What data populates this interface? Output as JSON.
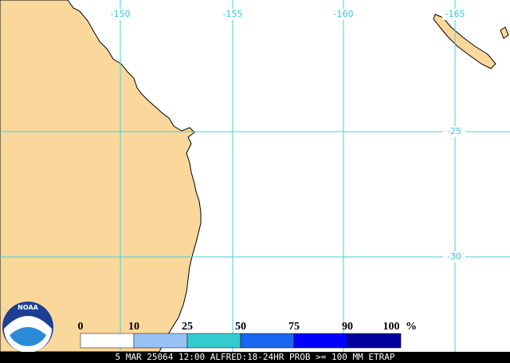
{
  "map": {
    "lon_labels": [
      "-150",
      "-155",
      "-160",
      "-165"
    ],
    "lat_labels": [
      "-25",
      "-30"
    ]
  },
  "legend": {
    "labels": [
      "0",
      "10",
      "25",
      "50",
      "75",
      "90",
      "100"
    ],
    "unit": "%",
    "colors": [
      "#ffffff",
      "#99c2f7",
      "#33cccc",
      "#1a66f0",
      "#0000ff",
      "#00009c"
    ]
  },
  "logo": {
    "text": "NOAA"
  },
  "footer": {
    "text": "5 MAR 25064 12:00 ALFRED:18-24HR PROB >= 100 MM ETRAP"
  }
}
